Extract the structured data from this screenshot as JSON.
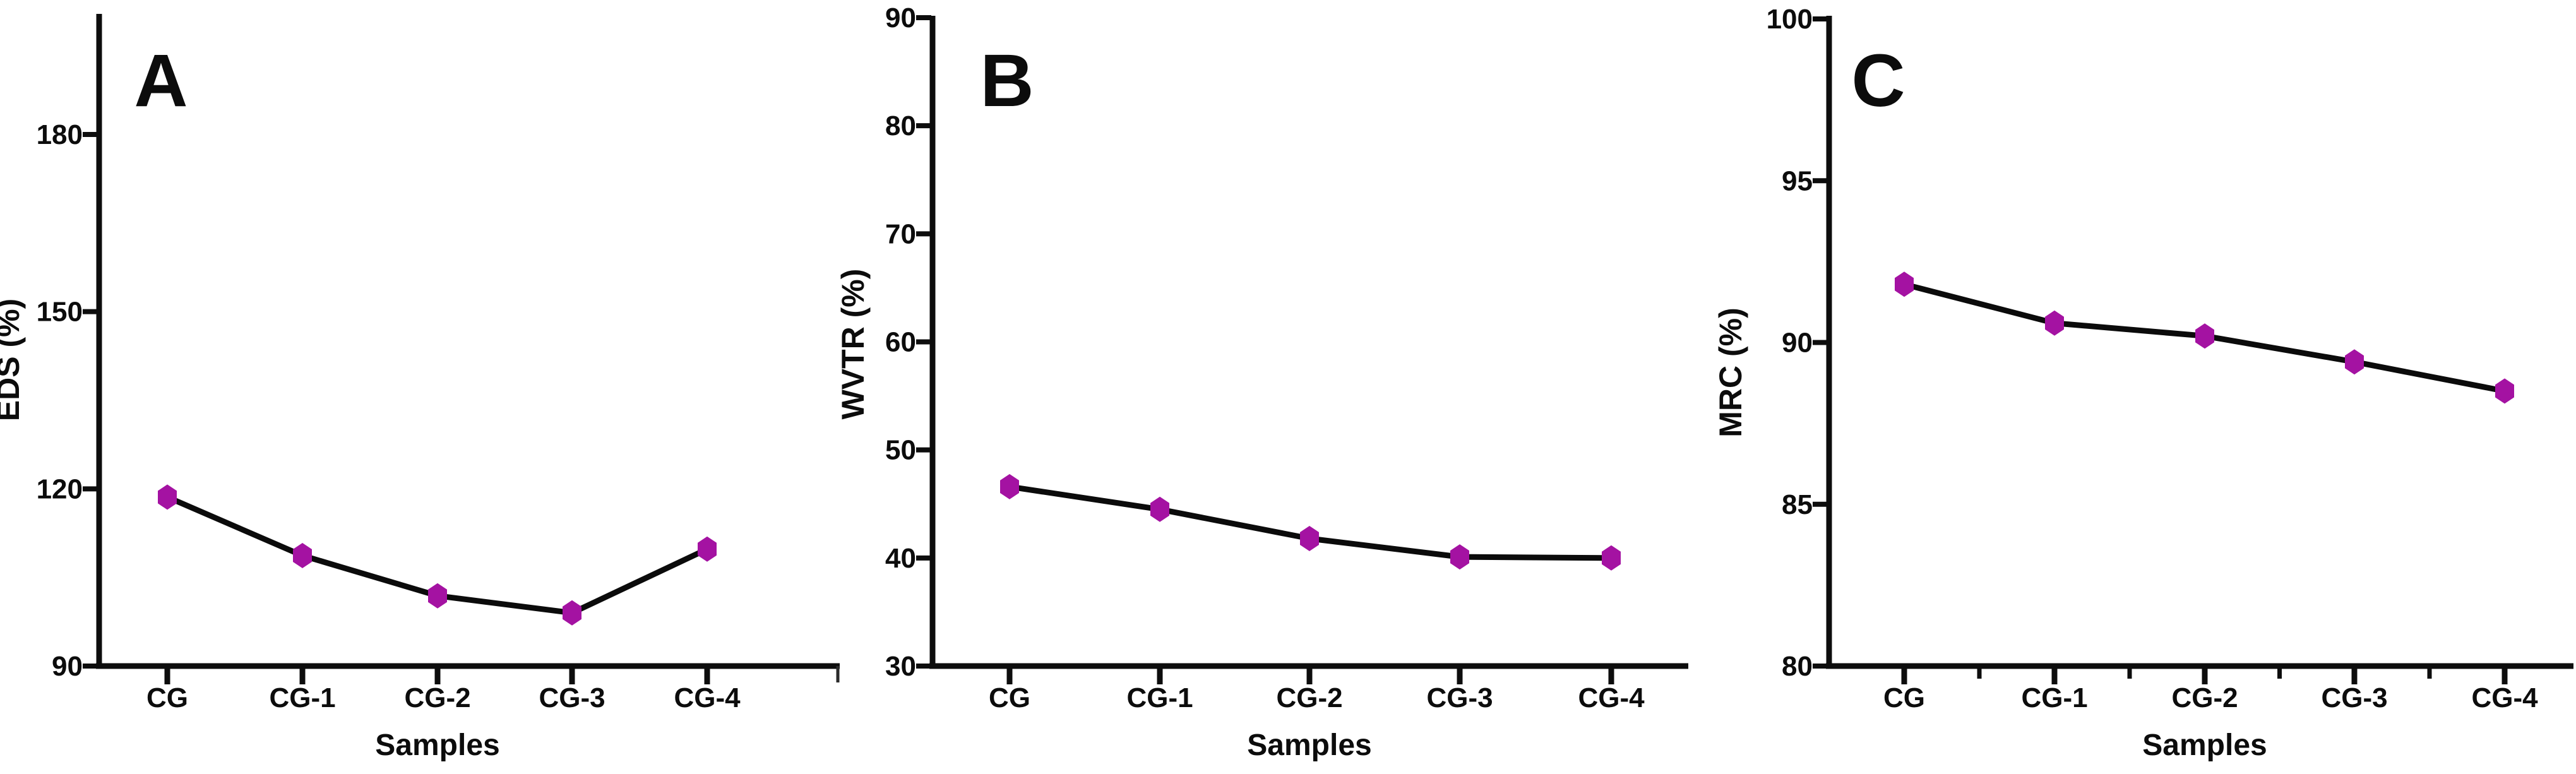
{
  "page": {
    "background_color": "#ffffff",
    "text_color": "#0c0c0c",
    "axis_color": "#0d0d0d"
  },
  "chart_data": [
    {
      "type": "line",
      "panel_label": "A",
      "title": "",
      "xlabel": "Samples",
      "ylabel": "EDS (%)",
      "categories": [
        "CG",
        "CG-1",
        "CG-2",
        "CG-3",
        "CG-4"
      ],
      "values": [
        118.6,
        108.7,
        101.9,
        99.0,
        109.8
      ],
      "yticks": [
        90,
        120,
        150,
        180
      ],
      "ylim": [
        90,
        200
      ],
      "grid": false,
      "legend": "none",
      "marker": "hexagon",
      "marker_color": "#a412a2",
      "line_color": "#0b0b0b"
    },
    {
      "type": "line",
      "panel_label": "B",
      "title": "",
      "xlabel": "Samples",
      "ylabel": "WVTR (%)",
      "categories": [
        "CG",
        "CG-1",
        "CG-2",
        "CG-3",
        "CG-4"
      ],
      "values": [
        46.6,
        44.5,
        41.8,
        40.1,
        40.0
      ],
      "yticks": [
        30,
        40,
        50,
        60,
        70,
        80,
        90
      ],
      "ylim": [
        30,
        90
      ],
      "grid": false,
      "legend": "none",
      "marker": "hexagon",
      "marker_color": "#a412a2",
      "line_color": "#0b0b0b"
    },
    {
      "type": "line",
      "panel_label": "C",
      "title": "",
      "xlabel": "Samples",
      "ylabel": "MRC (%)",
      "categories": [
        "CG",
        "CG-1",
        "CG-2",
        "CG-3",
        "CG-4"
      ],
      "values": [
        91.8,
        90.6,
        90.2,
        89.4,
        88.5
      ],
      "yticks": [
        80,
        85,
        90,
        95,
        100
      ],
      "ylim": [
        80,
        100
      ],
      "grid": false,
      "legend": "none",
      "marker": "hexagon",
      "marker_color": "#a412a2",
      "line_color": "#0b0b0b"
    }
  ]
}
